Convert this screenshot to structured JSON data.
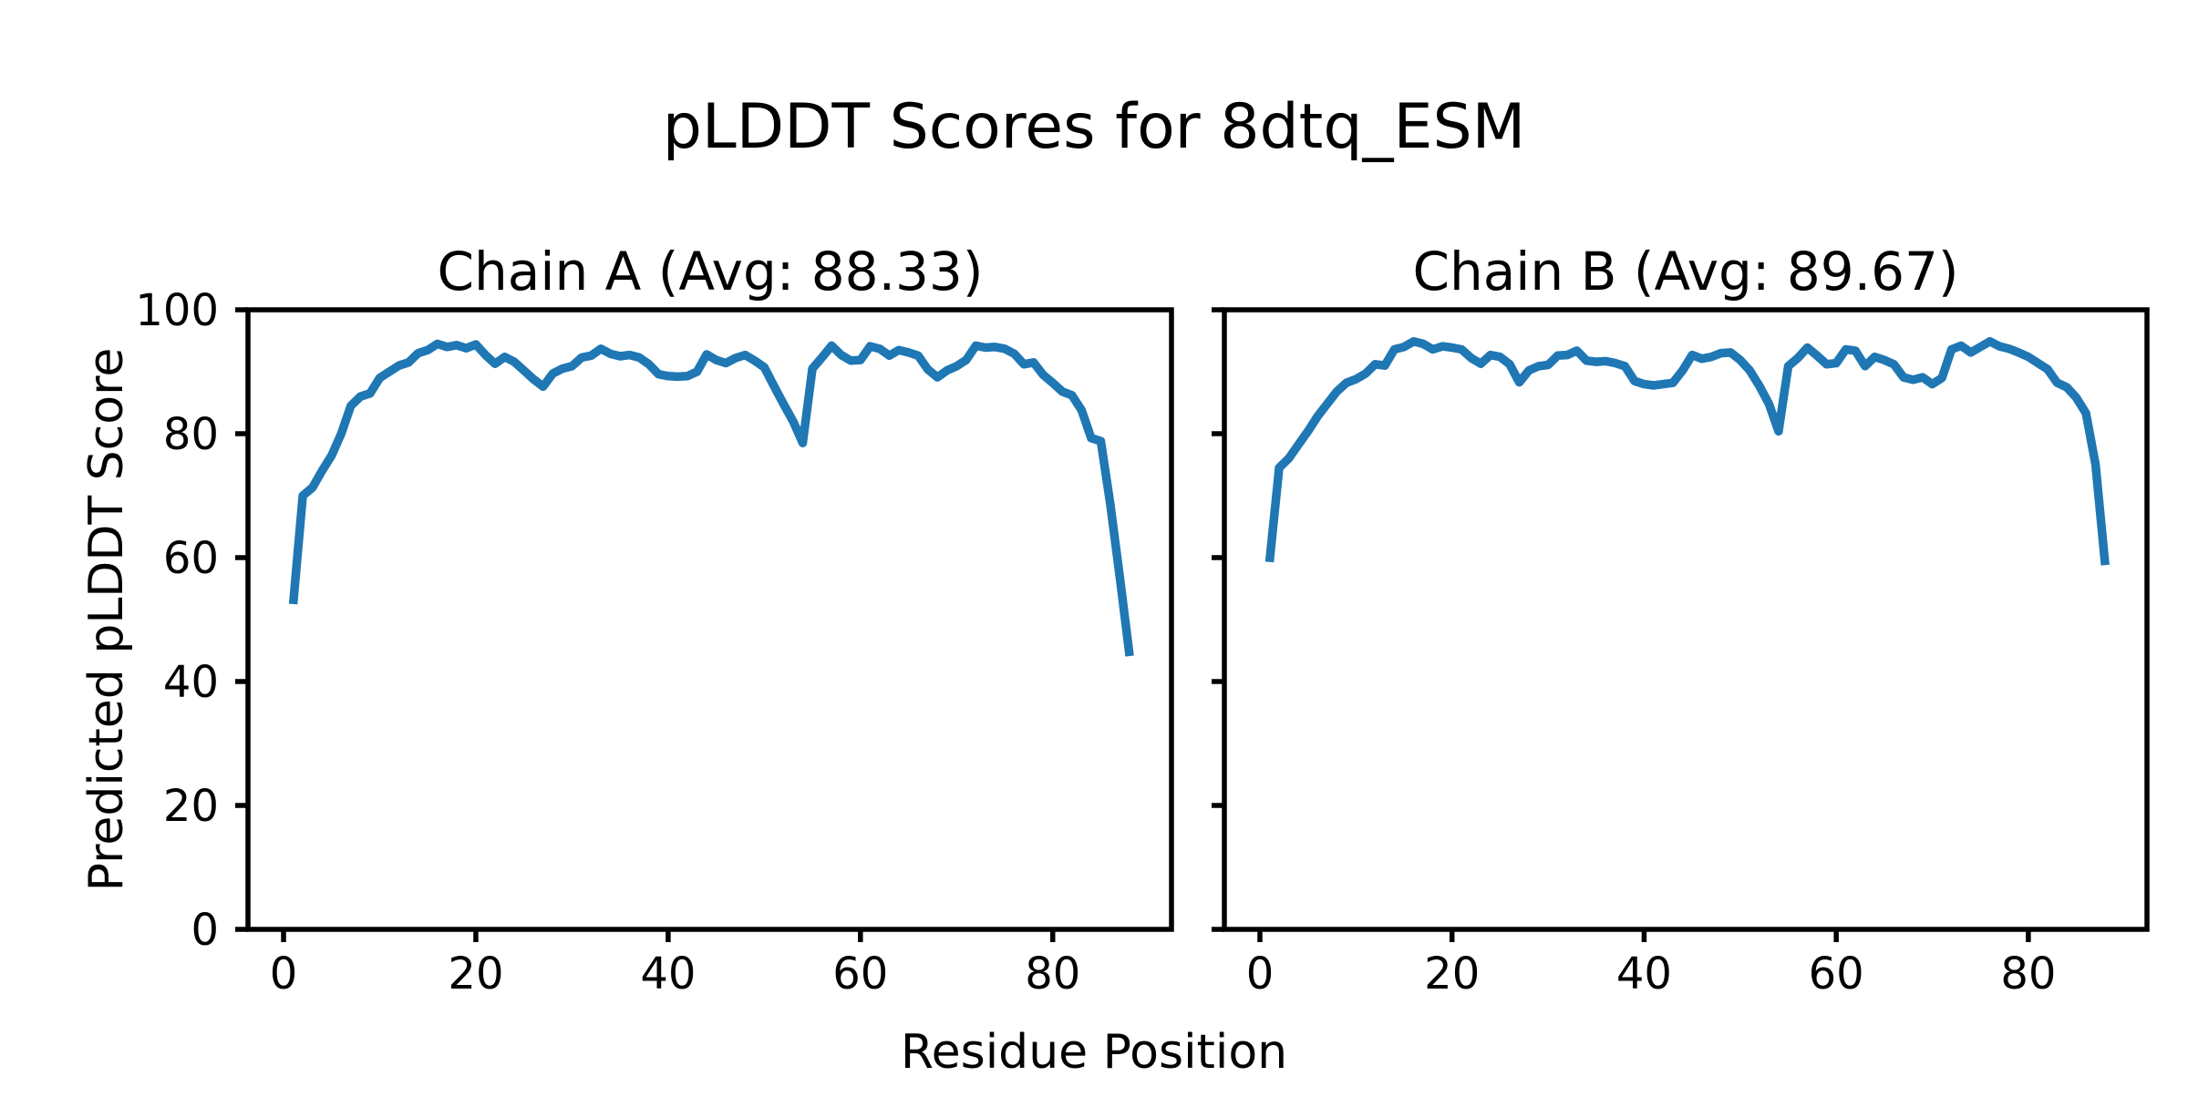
{
  "figure": {
    "title": "pLDDT Scores for 8dtq_ESM",
    "xlabel": "Residue Position",
    "ylabel": "Predicted pLDDT Score",
    "background_color": "#ffffff",
    "line_color": "#1f77b4"
  },
  "chart_data": [
    {
      "type": "line",
      "title": "Chain A (Avg: 88.33)",
      "average": 88.33,
      "xlabel": "Residue Position",
      "ylabel": "Predicted pLDDT Score",
      "xlim": [
        -3.7,
        92.35
      ],
      "ylim": [
        0,
        100
      ],
      "xticks": [
        0,
        20,
        40,
        60,
        80
      ],
      "yticks": [
        0,
        20,
        40,
        60,
        80,
        100
      ],
      "grid": false,
      "legend": "none",
      "y_tick_labels_shown": true,
      "x": {
        "from": 1,
        "to": 88,
        "step": 1
      },
      "series": [
        {
          "name": "Chain A pLDDT",
          "color": "#1f77b4",
          "values": [
            52.5,
            70.0,
            71.3,
            74.0,
            76.5,
            80.0,
            84.5,
            86.0,
            86.5,
            89.0,
            90.0,
            91.0,
            91.5,
            93.0,
            93.5,
            94.5,
            94.0,
            94.3,
            93.8,
            94.4,
            92.7,
            91.3,
            92.4,
            91.6,
            90.2,
            88.8,
            87.6,
            89.7,
            90.5,
            90.9,
            92.3,
            92.6,
            93.7,
            92.9,
            92.5,
            92.7,
            92.3,
            91.2,
            89.6,
            89.3,
            89.2,
            89.3,
            90.0,
            92.8,
            91.9,
            91.4,
            92.2,
            92.7,
            91.8,
            90.7,
            87.7,
            84.8,
            82.0,
            78.5,
            90.5,
            92.3,
            94.2,
            92.7,
            91.8,
            91.9,
            94.1,
            93.7,
            92.6,
            93.5,
            93.1,
            92.6,
            90.4,
            89.1,
            90.2,
            90.9,
            91.9,
            94.2,
            93.9,
            94.0,
            93.7,
            92.9,
            91.2,
            91.5,
            89.5,
            88.2,
            86.8,
            86.2,
            83.8,
            79.3,
            78.8,
            68.5,
            56.5,
            44.1
          ]
        }
      ]
    },
    {
      "type": "line",
      "title": "Chain B (Avg: 89.67)",
      "average": 89.67,
      "xlabel": "Residue Position",
      "ylabel": "Predicted pLDDT Score",
      "xlim": [
        -3.7,
        92.35
      ],
      "ylim": [
        0,
        100
      ],
      "xticks": [
        0,
        20,
        40,
        60,
        80
      ],
      "yticks": [
        0,
        20,
        40,
        60,
        80,
        100
      ],
      "grid": false,
      "legend": "none",
      "y_tick_labels_shown": false,
      "x": {
        "from": 1,
        "to": 88,
        "step": 1
      },
      "series": [
        {
          "name": "Chain B pLDDT",
          "color": "#1f77b4",
          "values": [
            59.3,
            74.5,
            76.0,
            78.2,
            80.4,
            82.8,
            84.8,
            86.8,
            88.2,
            88.8,
            89.7,
            91.2,
            91.0,
            93.6,
            94.0,
            94.9,
            94.5,
            93.6,
            94.1,
            93.9,
            93.6,
            92.2,
            91.3,
            92.7,
            92.4,
            91.2,
            88.3,
            90.2,
            90.9,
            91.1,
            92.6,
            92.7,
            93.4,
            91.8,
            91.6,
            91.7,
            91.4,
            90.9,
            88.5,
            88.0,
            87.8,
            88.0,
            88.2,
            90.2,
            92.7,
            92.1,
            92.4,
            93.0,
            93.1,
            91.9,
            90.2,
            87.7,
            84.8,
            80.4,
            90.9,
            92.2,
            93.9,
            92.6,
            91.2,
            91.4,
            93.6,
            93.4,
            90.9,
            92.4,
            91.9,
            91.2,
            89.1,
            88.7,
            89.1,
            88.0,
            89.0,
            93.6,
            94.2,
            93.1,
            94.0,
            94.9,
            94.1,
            93.7,
            93.1,
            92.4,
            91.4,
            90.4,
            88.2,
            87.5,
            85.8,
            83.3,
            75.0,
            58.8
          ]
        }
      ]
    }
  ]
}
